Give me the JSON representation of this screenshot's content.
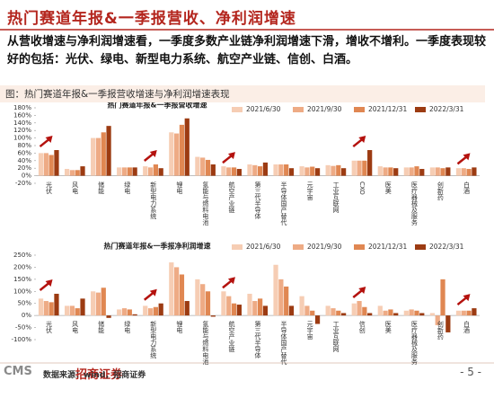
{
  "header": {
    "title": "热门赛道年报&一季报营收、净利润增速"
  },
  "body": {
    "text": "从营收增速与净利润增速看，一季度多数产业链净利润增速下滑，增收不增利。一季度表现较好的包括：光伏、绿电、新型电力系统、航空产业链、信创、白酒。"
  },
  "figure": {
    "caption": "图：热门赛道年报&一季报营收增速与净利润增速表现"
  },
  "chart_data": [
    {
      "type": "bar",
      "title": "热门赛道年报&一季报营收增速",
      "categories": [
        "光伏",
        "风电",
        "储能",
        "绿电",
        "新型电力系统",
        "锂电",
        "氢能与燃料电池",
        "航空产业链",
        "第三代半导体",
        "半导体国产替代",
        "元宇宙",
        "工业互联网",
        "CXO",
        "医美",
        "医疗器械及服务",
        "创新药",
        "白酒"
      ],
      "series": [
        {
          "name": "2021/6/30",
          "color": "#f6cdb4",
          "values": [
            60,
            18,
            100,
            22,
            25,
            115,
            50,
            25,
            30,
            30,
            25,
            28,
            40,
            25,
            22,
            22,
            20
          ]
        },
        {
          "name": "2021/9/30",
          "color": "#eeab85",
          "values": [
            60,
            15,
            100,
            22,
            22,
            112,
            48,
            22,
            28,
            30,
            22,
            26,
            40,
            22,
            22,
            22,
            20
          ]
        },
        {
          "name": "2021/12/31",
          "color": "#e08752",
          "values": [
            55,
            15,
            115,
            22,
            30,
            135,
            42,
            22,
            25,
            30,
            24,
            28,
            40,
            22,
            25,
            20,
            18
          ]
        },
        {
          "name": "2022/3/31",
          "color": "#9c3b12",
          "values": [
            68,
            25,
            132,
            22,
            20,
            152,
            30,
            18,
            35,
            20,
            20,
            20,
            68,
            20,
            18,
            22,
            22
          ]
        }
      ],
      "ylim": [
        -20,
        180
      ],
      "yticks": [
        {
          "value": -20,
          "label": "-20%"
        },
        {
          "value": 0,
          "label": "0%"
        },
        {
          "value": 20,
          "label": "20%"
        },
        {
          "value": 40,
          "label": "40%"
        },
        {
          "value": 60,
          "label": "60%"
        },
        {
          "value": 80,
          "label": "80%"
        },
        {
          "value": 100,
          "label": "100%"
        },
        {
          "value": 120,
          "label": "120%"
        },
        {
          "value": 140,
          "label": "140%"
        },
        {
          "value": 160,
          "label": "160%"
        },
        {
          "value": 180,
          "label": "180%"
        }
      ],
      "grid": false,
      "legend": "top-right"
    },
    {
      "type": "bar",
      "title": "热门赛道年报&一季报净利润增速",
      "categories": [
        "光伏",
        "风电",
        "储能",
        "绿电",
        "新型电力系统",
        "锂电",
        "氢能与燃料电池",
        "航空产业链",
        "第三代半导体",
        "半导体国产替代",
        "元宇宙",
        "工业互联网",
        "信创",
        "医美",
        "医疗器械及服务",
        "创新药",
        "白酒"
      ],
      "series": [
        {
          "name": "2021/6/30",
          "color": "#f6cdb4",
          "values": [
            70,
            40,
            100,
            25,
            40,
            220,
            150,
            100,
            90,
            210,
            80,
            40,
            50,
            40,
            20,
            10,
            20
          ]
        },
        {
          "name": "2021/9/30",
          "color": "#eeab85",
          "values": [
            60,
            40,
            95,
            30,
            30,
            200,
            130,
            80,
            60,
            150,
            40,
            30,
            60,
            20,
            25,
            -40,
            20
          ]
        },
        {
          "name": "2021/12/31",
          "color": "#e08752",
          "values": [
            55,
            30,
            115,
            25,
            35,
            170,
            100,
            50,
            70,
            120,
            20,
            20,
            35,
            25,
            20,
            150,
            20
          ]
        },
        {
          "name": "2022/3/31",
          "color": "#9c3b12",
          "values": [
            90,
            70,
            -10,
            5,
            50,
            60,
            -5,
            45,
            40,
            40,
            -35,
            10,
            10,
            10,
            10,
            -70,
            30
          ]
        }
      ],
      "ylim": [
        -100,
        250
      ],
      "yticks": [
        {
          "value": -100,
          "label": "-100%"
        },
        {
          "value": -50,
          "label": "-50%"
        },
        {
          "value": 0,
          "label": "0%"
        },
        {
          "value": 50,
          "label": "50%"
        },
        {
          "value": 100,
          "label": "100%"
        },
        {
          "value": 150,
          "label": "150%"
        },
        {
          "value": 200,
          "label": "200%"
        },
        {
          "value": 250,
          "label": "250%"
        }
      ],
      "grid": false,
      "legend": "top-right"
    }
  ],
  "footer": {
    "source": "数据来源：wind，招商证券",
    "page": "- 5 -",
    "logo": "CMS",
    "logo_name": "招商证券"
  }
}
